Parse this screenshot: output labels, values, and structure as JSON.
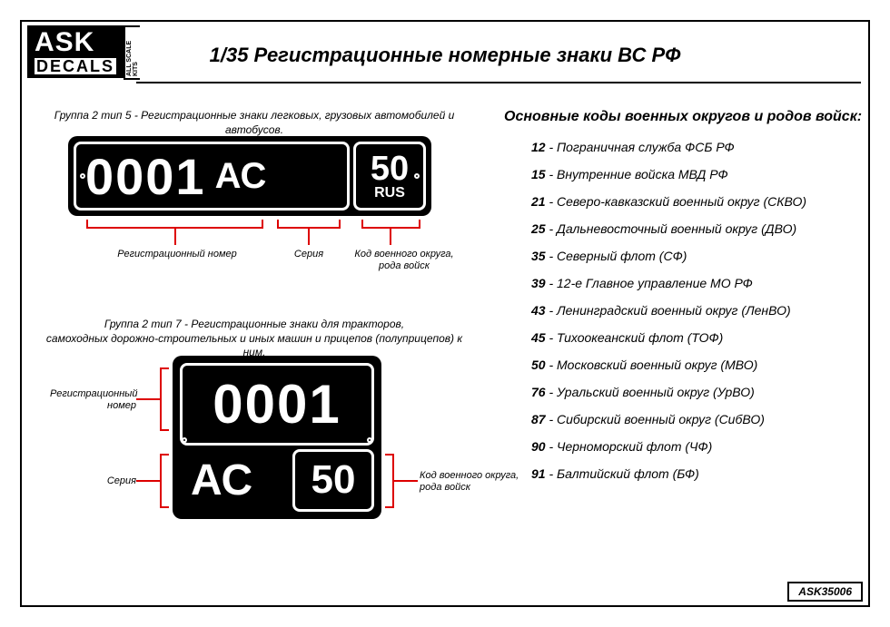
{
  "logo": {
    "line1": "ASK",
    "line2": "DECALS",
    "side": "ALL SCALE KITS"
  },
  "title": "1/35 Регистрационные номерные знаки ВС РФ",
  "part_code": "ASK35006",
  "caption1": "Группа 2 тип 5 - Регистрационные знаки легковых, грузовых автомобилей и автобусов.",
  "caption2": "Группа 2 тип 7 - Регистрационные знаки для тракторов,\nсамоходных дорожно-строительных и иных машин и прицепов (полуприцепов) к ним.",
  "plate5": {
    "number": "0001",
    "series": "АС",
    "code": "50",
    "rus": "RUS"
  },
  "plate7": {
    "number": "0001",
    "series": "АС",
    "code": "50"
  },
  "anno": {
    "reg_number": "Регистрационный номер",
    "series": "Серия",
    "code": "Код военного округа,\nрода войск",
    "reg_number_ml": "Регистрационный\nномер"
  },
  "codes_title": "Основные коды военных округов и родов войск:",
  "codes": [
    {
      "n": "12",
      "t": "Пограничная служба ФСБ РФ"
    },
    {
      "n": "15",
      "t": "Внутренние войска МВД РФ"
    },
    {
      "n": "21",
      "t": "Северо-кавказский военный округ (СКВО)"
    },
    {
      "n": "25",
      "t": "Дальневосточный военный округ (ДВО)"
    },
    {
      "n": "35",
      "t": "Северный флот (СФ)"
    },
    {
      "n": "39",
      "t": "12-е Главное управление МО РФ"
    },
    {
      "n": "43",
      "t": "Ленинградский военный округ (ЛенВО)"
    },
    {
      "n": "45",
      "t": "Тихоокеанский флот (ТОФ)"
    },
    {
      "n": "50",
      "t": "Московский военный округ (МВО)"
    },
    {
      "n": "76",
      "t": "Уральский военный округ (УрВО)"
    },
    {
      "n": "87",
      "t": "Сибирский военный округ (СибВО)"
    },
    {
      "n": "90",
      "t": "Черноморский флот (ЧФ)"
    },
    {
      "n": "91",
      "t": "Балтийский флот (БФ)"
    }
  ],
  "style": {
    "accent": "#d00000",
    "frame": "#000000",
    "bg": "#ffffff"
  }
}
